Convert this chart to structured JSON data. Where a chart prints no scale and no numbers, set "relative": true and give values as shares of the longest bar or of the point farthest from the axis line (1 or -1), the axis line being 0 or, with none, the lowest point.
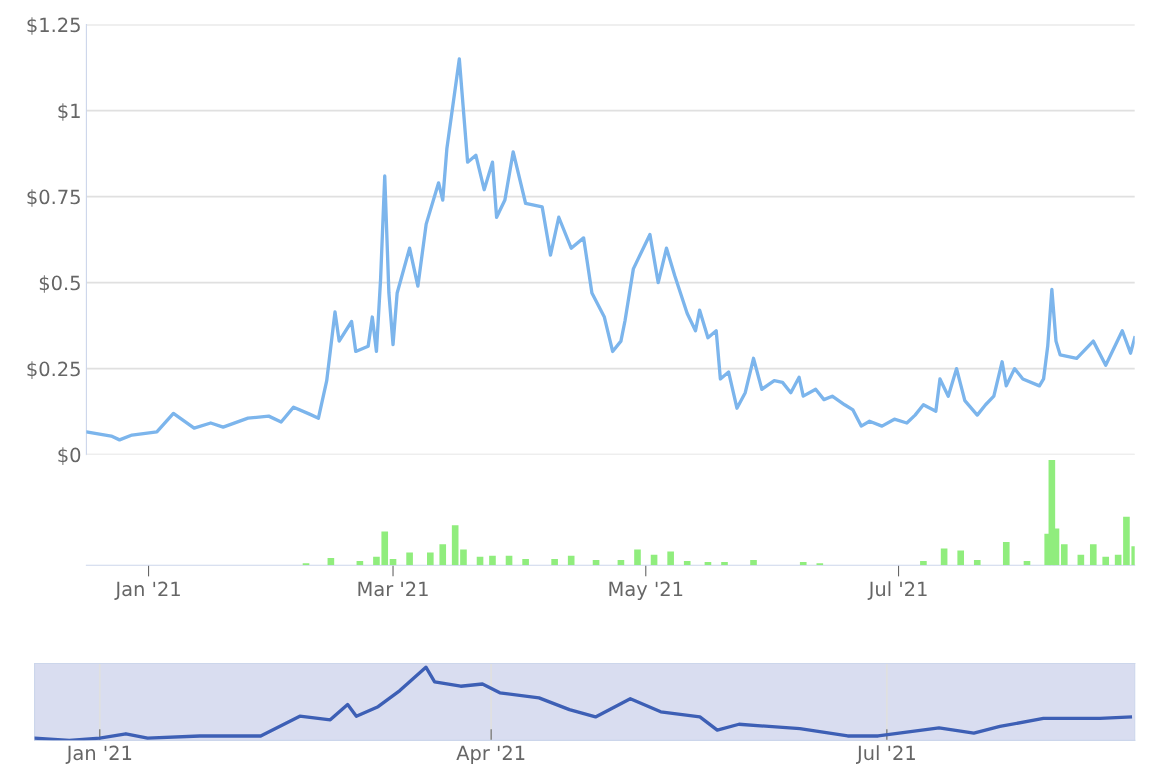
{
  "chart_data": [
    {
      "type": "line",
      "tick_labels": "y",
      "grid": "y",
      "legend": false,
      "marker": "none",
      "line_style": "solid",
      "xlim": [
        "2020-12-17",
        "2021-08-27"
      ],
      "ylim": [
        0,
        1.25
      ],
      "yticks": [
        {
          "value": 0,
          "label": "$0"
        },
        {
          "value": 0.25,
          "label": "$0.25"
        },
        {
          "value": 0.5,
          "label": "$0.5"
        },
        {
          "value": 0.75,
          "label": "$0.75"
        },
        {
          "value": 1,
          "label": "$1"
        },
        {
          "value": 1.25,
          "label": "$1.25"
        }
      ],
      "series": [
        {
          "color": "#7cb5ec",
          "x": [
            "2020-12-17",
            "2020-12-23",
            "2020-12-25",
            "2020-12-28",
            "2021-01-03",
            "2021-01-07",
            "2021-01-12",
            "2021-01-16",
            "2021-01-19",
            "2021-01-25",
            "2021-01-30",
            "2021-02-02",
            "2021-02-05",
            "2021-02-09",
            "2021-02-11",
            "2021-02-13",
            "2021-02-15",
            "2021-02-16",
            "2021-02-19",
            "2021-02-20",
            "2021-02-23",
            "2021-02-24",
            "2021-02-25",
            "2021-02-26",
            "2021-02-27",
            "2021-02-28",
            "2021-03-01",
            "2021-03-02",
            "2021-03-05",
            "2021-03-07",
            "2021-03-09",
            "2021-03-12",
            "2021-03-13",
            "2021-03-14",
            "2021-03-17",
            "2021-03-18",
            "2021-03-19",
            "2021-03-21",
            "2021-03-23",
            "2021-03-25",
            "2021-03-26",
            "2021-03-28",
            "2021-03-30",
            "2021-04-02",
            "2021-04-06",
            "2021-04-08",
            "2021-04-10",
            "2021-04-13",
            "2021-04-16",
            "2021-04-18",
            "2021-04-21",
            "2021-04-23",
            "2021-04-25",
            "2021-04-26",
            "2021-04-28",
            "2021-05-02",
            "2021-05-04",
            "2021-05-06",
            "2021-05-08",
            "2021-05-11",
            "2021-05-13",
            "2021-05-14",
            "2021-05-16",
            "2021-05-18",
            "2021-05-19",
            "2021-05-21",
            "2021-05-23",
            "2021-05-25",
            "2021-05-27",
            "2021-05-29",
            "2021-06-01",
            "2021-06-03",
            "2021-06-05",
            "2021-06-07",
            "2021-06-08",
            "2021-06-11",
            "2021-06-13",
            "2021-06-15",
            "2021-06-18",
            "2021-06-20",
            "2021-06-22",
            "2021-06-24",
            "2021-06-27",
            "2021-06-30",
            "2021-07-03",
            "2021-07-05",
            "2021-07-07",
            "2021-07-10",
            "2021-07-11",
            "2021-07-13",
            "2021-07-15",
            "2021-07-17",
            "2021-07-20",
            "2021-07-22",
            "2021-07-24",
            "2021-07-26",
            "2021-07-27",
            "2021-07-29",
            "2021-07-31",
            "2021-08-04",
            "2021-08-05",
            "2021-08-06",
            "2021-08-07",
            "2021-08-08",
            "2021-08-09",
            "2021-08-13",
            "2021-08-17",
            "2021-08-20",
            "2021-08-24",
            "2021-08-26",
            "2021-08-27"
          ],
          "values": [
            0.066,
            0.054,
            0.043,
            0.057,
            0.066,
            0.12,
            0.077,
            0.092,
            0.08,
            0.106,
            0.112,
            0.095,
            0.138,
            0.117,
            0.106,
            0.215,
            0.415,
            0.33,
            0.387,
            0.3,
            0.315,
            0.4,
            0.3,
            0.51,
            0.81,
            0.47,
            0.32,
            0.47,
            0.6,
            0.49,
            0.67,
            0.79,
            0.74,
            0.89,
            1.15,
            1.0,
            0.85,
            0.87,
            0.77,
            0.85,
            0.69,
            0.74,
            0.88,
            0.73,
            0.72,
            0.58,
            0.69,
            0.6,
            0.63,
            0.47,
            0.4,
            0.3,
            0.33,
            0.39,
            0.54,
            0.64,
            0.5,
            0.6,
            0.52,
            0.41,
            0.36,
            0.42,
            0.34,
            0.36,
            0.22,
            0.24,
            0.135,
            0.18,
            0.28,
            0.19,
            0.215,
            0.21,
            0.18,
            0.225,
            0.17,
            0.19,
            0.16,
            0.17,
            0.145,
            0.13,
            0.083,
            0.097,
            0.083,
            0.103,
            0.092,
            0.115,
            0.145,
            0.126,
            0.22,
            0.17,
            0.25,
            0.157,
            0.115,
            0.145,
            0.17,
            0.27,
            0.2,
            0.25,
            0.22,
            0.2,
            0.22,
            0.315,
            0.48,
            0.33,
            0.29,
            0.28,
            0.33,
            0.26,
            0.36,
            0.295,
            0.34
          ]
        }
      ]
    },
    {
      "type": "bar",
      "relative": true,
      "tick_labels": "x",
      "grid": false,
      "xlim": [
        "2020-12-17",
        "2021-08-27"
      ],
      "xticks": [
        {
          "value": "2021-01-01",
          "label": "Jan '21"
        },
        {
          "value": "2021-03-01",
          "label": "Mar '21"
        },
        {
          "value": "2021-05-01",
          "label": "May '21"
        },
        {
          "value": "2021-07-01",
          "label": "Jul '21"
        }
      ],
      "series": [
        {
          "color": "#90ed7d",
          "x": [
            "2021-02-08",
            "2021-02-14",
            "2021-02-21",
            "2021-02-25",
            "2021-02-27",
            "2021-03-01",
            "2021-03-05",
            "2021-03-10",
            "2021-03-13",
            "2021-03-16",
            "2021-03-18",
            "2021-03-22",
            "2021-03-25",
            "2021-03-29",
            "2021-04-02",
            "2021-04-09",
            "2021-04-13",
            "2021-04-19",
            "2021-04-25",
            "2021-04-29",
            "2021-05-03",
            "2021-05-07",
            "2021-05-11",
            "2021-05-16",
            "2021-05-20",
            "2021-05-27",
            "2021-06-08",
            "2021-06-12",
            "2021-07-07",
            "2021-07-12",
            "2021-07-16",
            "2021-07-20",
            "2021-07-27",
            "2021-08-01",
            "2021-08-06",
            "2021-08-07",
            "2021-08-08",
            "2021-08-10",
            "2021-08-14",
            "2021-08-17",
            "2021-08-20",
            "2021-08-23",
            "2021-08-25",
            "2021-08-27"
          ],
          "values": [
            0.02,
            0.07,
            0.04,
            0.08,
            0.32,
            0.06,
            0.12,
            0.12,
            0.2,
            0.38,
            0.15,
            0.08,
            0.09,
            0.09,
            0.06,
            0.06,
            0.09,
            0.05,
            0.05,
            0.15,
            0.1,
            0.13,
            0.04,
            0.03,
            0.03,
            0.05,
            0.03,
            0.02,
            0.04,
            0.16,
            0.14,
            0.05,
            0.22,
            0.04,
            0.3,
            1.0,
            0.35,
            0.2,
            0.1,
            0.2,
            0.08,
            0.1,
            0.46,
            0.18
          ]
        }
      ]
    },
    {
      "type": "line",
      "relative": true,
      "tick_labels": "x",
      "grid": "x",
      "xlim": [
        "2020-12-17",
        "2021-08-27"
      ],
      "xticks": [
        {
          "value": "2021-01-01",
          "label": "Jan '21"
        },
        {
          "value": "2021-04-01",
          "label": "Apr '21"
        },
        {
          "value": "2021-07-01",
          "label": "Jul '21"
        }
      ],
      "bands": [
        {
          "axis": "x",
          "from": "2020-12-17",
          "to": "2021-08-27",
          "color": "#d9ddf0"
        }
      ],
      "series": [
        {
          "color": "#3d5fb5",
          "x": [
            "2020-12-17",
            "2020-12-25",
            "2021-01-01",
            "2021-01-07",
            "2021-01-12",
            "2021-01-24",
            "2021-02-07",
            "2021-02-16",
            "2021-02-23",
            "2021-02-27",
            "2021-03-01",
            "2021-03-06",
            "2021-03-11",
            "2021-03-17",
            "2021-03-19",
            "2021-03-25",
            "2021-03-30",
            "2021-04-03",
            "2021-04-12",
            "2021-04-19",
            "2021-04-25",
            "2021-05-03",
            "2021-05-10",
            "2021-05-19",
            "2021-05-23",
            "2021-05-28",
            "2021-06-11",
            "2021-06-22",
            "2021-06-29",
            "2021-07-13",
            "2021-07-21",
            "2021-07-27",
            "2021-08-06",
            "2021-08-19",
            "2021-08-26"
          ],
          "values": [
            0.03,
            0,
            0.03,
            0.09,
            0.03,
            0.06,
            0.06,
            0.33,
            0.28,
            0.49,
            0.33,
            0.46,
            0.68,
            1,
            0.8,
            0.74,
            0.77,
            0.65,
            0.58,
            0.42,
            0.32,
            0.57,
            0.39,
            0.32,
            0.14,
            0.22,
            0.16,
            0.06,
            0.06,
            0.17,
            0.1,
            0.19,
            0.3,
            0.3,
            0.32
          ]
        }
      ]
    }
  ]
}
